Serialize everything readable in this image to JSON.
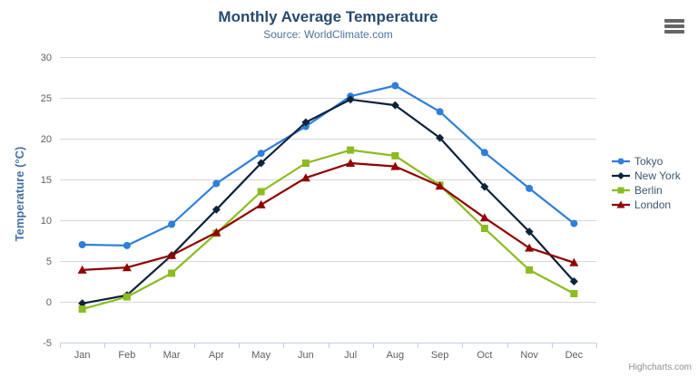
{
  "chart_data": {
    "type": "line",
    "title": "Monthly Average Temperature",
    "subtitle": "Source: WorldClimate.com",
    "categories": [
      "Jan",
      "Feb",
      "Mar",
      "Apr",
      "May",
      "Jun",
      "Jul",
      "Aug",
      "Sep",
      "Oct",
      "Nov",
      "Dec"
    ],
    "series": [
      {
        "name": "Tokyo",
        "color": "#2f7ed8",
        "marker": "circle",
        "values": [
          7.0,
          6.9,
          9.5,
          14.5,
          18.2,
          21.5,
          25.2,
          26.5,
          23.3,
          18.3,
          13.9,
          9.6
        ]
      },
      {
        "name": "New York",
        "color": "#0d233a",
        "marker": "diamond",
        "values": [
          -0.2,
          0.8,
          5.7,
          11.3,
          17.0,
          22.0,
          24.8,
          24.1,
          20.1,
          14.1,
          8.6,
          2.5
        ]
      },
      {
        "name": "Berlin",
        "color": "#8bbc21",
        "marker": "square",
        "values": [
          -0.9,
          0.6,
          3.5,
          8.4,
          13.5,
          17.0,
          18.6,
          17.9,
          14.3,
          9.0,
          3.9,
          1.0
        ]
      },
      {
        "name": "London",
        "color": "#910000",
        "marker": "triangle",
        "values": [
          3.9,
          4.2,
          5.7,
          8.5,
          11.9,
          15.2,
          17.0,
          16.6,
          14.2,
          10.3,
          6.6,
          4.8
        ]
      }
    ],
    "xlabel": "",
    "ylabel": "Temperature (°C)",
    "ylim": [
      -5,
      30
    ],
    "y_ticks": [
      -5,
      0,
      5,
      10,
      15,
      20,
      25,
      30
    ],
    "grid": true,
    "legend_position": "right"
  },
  "credit": "Highcharts.com",
  "theme": {
    "title_color": "#274b6d",
    "subtitle_color": "#4d759e",
    "axis_title_color": "#4572a7",
    "tick_label_color": "#606060",
    "legend_text_color": "#3e576f",
    "grid_color": "#d8d8d8",
    "axis_line_color": "#c0d0e0",
    "credit_color": "#909090",
    "burger_color": "#666666",
    "background": "#ffffff"
  }
}
